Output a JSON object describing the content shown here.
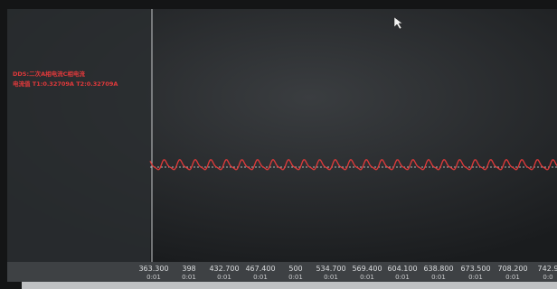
{
  "panel": {
    "line1": "DDS:二次A相电流C相电流",
    "line2": "电流值 T1:0.32709A T2:0.32709A"
  },
  "x_axis": {
    "ticks": [
      {
        "value": "363.300",
        "time": "0:01"
      },
      {
        "value": "398",
        "time": "0:01"
      },
      {
        "value": "432.700",
        "time": "0:01"
      },
      {
        "value": "467.400",
        "time": "0:01"
      },
      {
        "value": "500",
        "time": "0:01"
      },
      {
        "value": "534.700",
        "time": "0:01"
      },
      {
        "value": "569.400",
        "time": "0:01"
      },
      {
        "value": "604.100",
        "time": "0:01"
      },
      {
        "value": "638.800",
        "time": "0:01"
      },
      {
        "value": "673.500",
        "time": "0:01"
      },
      {
        "value": "708.200",
        "time": "0:01"
      },
      {
        "value": "742.9",
        "time": "0:0"
      }
    ]
  }
}
